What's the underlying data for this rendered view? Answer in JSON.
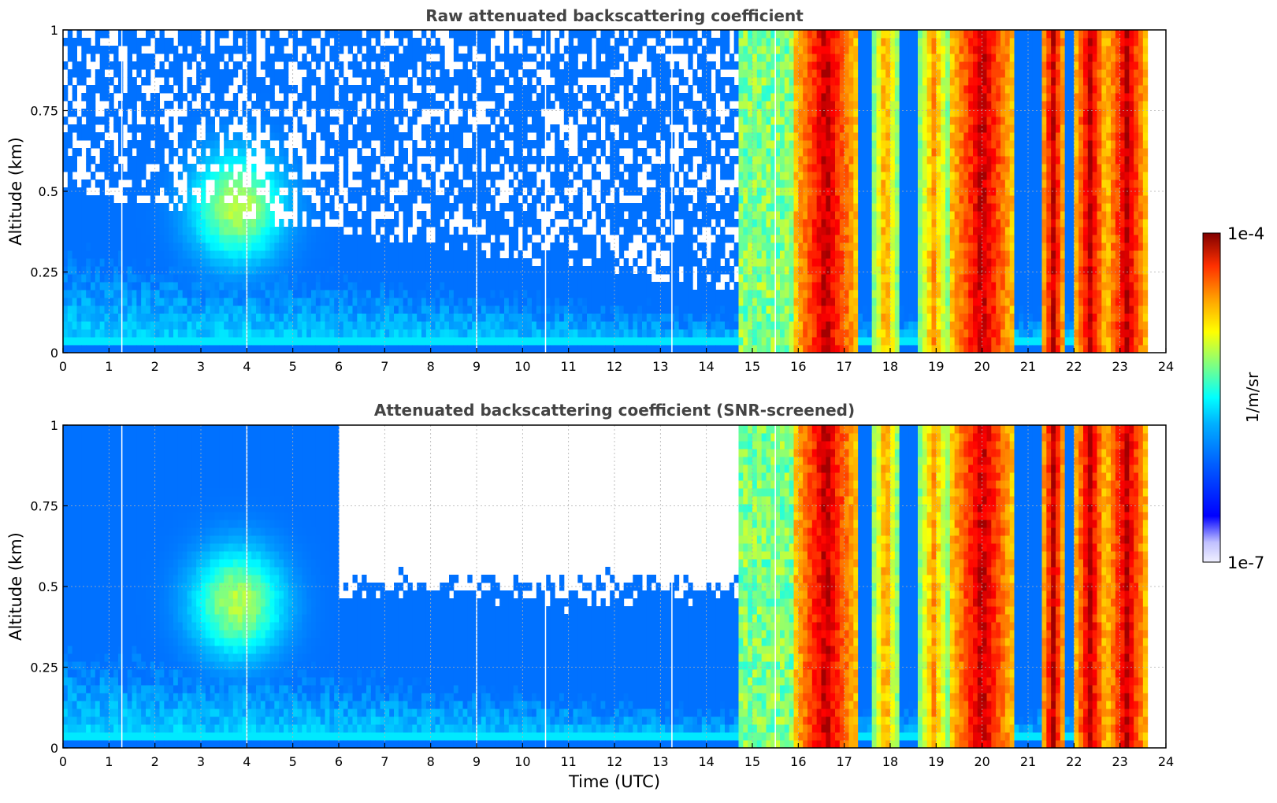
{
  "chart_data": [
    {
      "type": "heatmap",
      "title": "Raw attenuated backscattering coefficient",
      "xlabel": "",
      "ylabel": "Altitude (km)",
      "xlim": [
        0,
        24
      ],
      "ylim": [
        0,
        1
      ],
      "x_ticks": [
        "0",
        "1",
        "2",
        "3",
        "4",
        "5",
        "6",
        "7",
        "8",
        "9",
        "10",
        "11",
        "12",
        "13",
        "14",
        "15",
        "16",
        "17",
        "18",
        "19",
        "20",
        "21",
        "22",
        "23",
        "24"
      ],
      "y_ticks": [
        "0",
        "0.25",
        "0.5",
        "0.75",
        "1"
      ],
      "y_tick_values": [
        0,
        0.25,
        0.5,
        0.75,
        1
      ],
      "grid": true,
      "screened": false,
      "colormap": "jet",
      "color_scale": "log",
      "clim": [
        1e-07,
        0.0001
      ],
      "data_gaps_utc": [
        1.28,
        4.0,
        9.0,
        10.5,
        13.25,
        15.5
      ],
      "cloud_bands_utc": [
        {
          "start": 15.9,
          "end": 17.3,
          "level": "high"
        },
        {
          "start": 17.6,
          "end": 18.2,
          "level": "medium"
        },
        {
          "start": 18.6,
          "end": 19.3,
          "level": "medium"
        },
        {
          "start": 19.3,
          "end": 20.7,
          "level": "high"
        },
        {
          "start": 21.3,
          "end": 21.8,
          "level": "high"
        },
        {
          "start": 22.0,
          "end": 22.7,
          "level": "high"
        },
        {
          "start": 22.7,
          "end": 23.6,
          "level": "high"
        }
      ]
    },
    {
      "type": "heatmap",
      "title": "Attenuated backscattering coefficient (SNR-screened)",
      "xlabel": "Time (UTC)",
      "ylabel": "Altitude (km)",
      "xlim": [
        0,
        24
      ],
      "ylim": [
        0,
        1
      ],
      "x_ticks": [
        "0",
        "1",
        "2",
        "3",
        "4",
        "5",
        "6",
        "7",
        "8",
        "9",
        "10",
        "11",
        "12",
        "13",
        "14",
        "15",
        "16",
        "17",
        "18",
        "19",
        "20",
        "21",
        "22",
        "23",
        "24"
      ],
      "y_ticks": [
        "0",
        "0.25",
        "0.5",
        "0.75",
        "1"
      ],
      "y_tick_values": [
        0,
        0.25,
        0.5,
        0.75,
        1
      ],
      "grid": true,
      "screened": true,
      "colormap": "jet",
      "color_scale": "log",
      "clim": [
        1e-07,
        0.0001
      ],
      "data_gaps_utc": [
        1.28,
        4.0,
        9.0,
        10.5,
        13.25,
        15.5
      ],
      "cloud_bands_utc": [
        {
          "start": 15.9,
          "end": 17.3,
          "level": "high"
        },
        {
          "start": 17.6,
          "end": 18.2,
          "level": "medium"
        },
        {
          "start": 18.6,
          "end": 19.3,
          "level": "medium"
        },
        {
          "start": 19.3,
          "end": 20.7,
          "level": "high"
        },
        {
          "start": 21.3,
          "end": 21.8,
          "level": "high"
        },
        {
          "start": 22.0,
          "end": 22.7,
          "level": "high"
        },
        {
          "start": 22.7,
          "end": 23.6,
          "level": "high"
        }
      ]
    }
  ],
  "colorbar": {
    "label": "1/m/sr",
    "max_label": "1e-4",
    "min_label": "1e-7",
    "colors": [
      "#f0f0ff",
      "#c0c0ff",
      "#0000ff",
      "#0060ff",
      "#00b0ff",
      "#00ffff",
      "#80ff80",
      "#ffff00",
      "#ffa000",
      "#ff3000",
      "#b00000",
      "#800000"
    ]
  }
}
